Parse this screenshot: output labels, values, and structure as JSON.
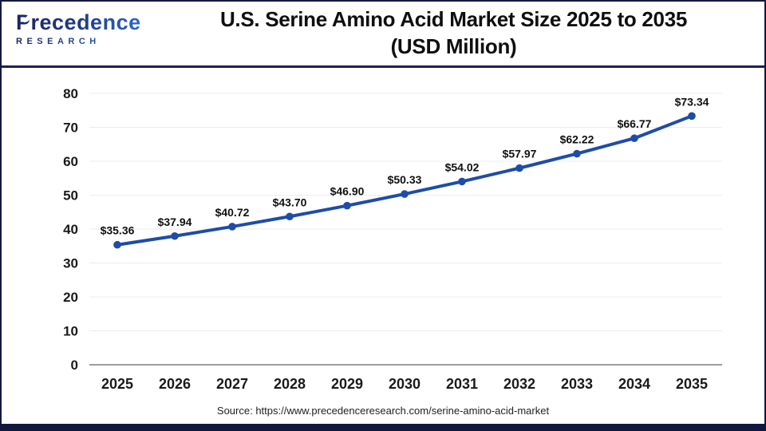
{
  "header": {
    "logo": {
      "line1": "Precedence",
      "line2": "RESEARCH"
    },
    "title_line1": "U.S. Serine Amino Acid Market Size 2025 to 2035",
    "title_line2": "(USD Million)"
  },
  "chart_data": {
    "type": "line",
    "title": "U.S. Serine Amino Acid Market Size 2025 to 2035 (USD Million)",
    "categories": [
      "2025",
      "2026",
      "2027",
      "2028",
      "2029",
      "2030",
      "2031",
      "2032",
      "2033",
      "2034",
      "2035"
    ],
    "series": [
      {
        "name": "U.S. Serine Amino Acid Market Size (USD Million)",
        "values": [
          35.36,
          37.94,
          40.72,
          43.7,
          46.9,
          50.33,
          54.02,
          57.97,
          62.22,
          66.77,
          73.34
        ]
      }
    ],
    "point_labels": [
      "$35.36",
      "$37.94",
      "$40.72",
      "$43.70",
      "$46.90",
      "$50.33",
      "$54.02",
      "$57.97",
      "$62.22",
      "$66.77",
      "$73.34"
    ],
    "xlabel": "",
    "ylabel": "",
    "ylim": [
      0,
      80
    ],
    "yticks": [
      0,
      10,
      20,
      30,
      40,
      50,
      60,
      70,
      80
    ],
    "grid": true,
    "legend": "none",
    "line_color": "#1e4ca8",
    "marker": "circle"
  },
  "footer": {
    "source": "Source: https://www.precedenceresearch.com/serine-amino-acid-market"
  },
  "colors": {
    "frame_border": "#11183f",
    "header_divider": "#1a2150",
    "gridline": "#ececec",
    "axis_line": "#9e9e9e",
    "line": "#1e4ca8",
    "logo_navy": "#1b2660",
    "logo_blue": "#2e6fd0",
    "text": "#101010"
  }
}
